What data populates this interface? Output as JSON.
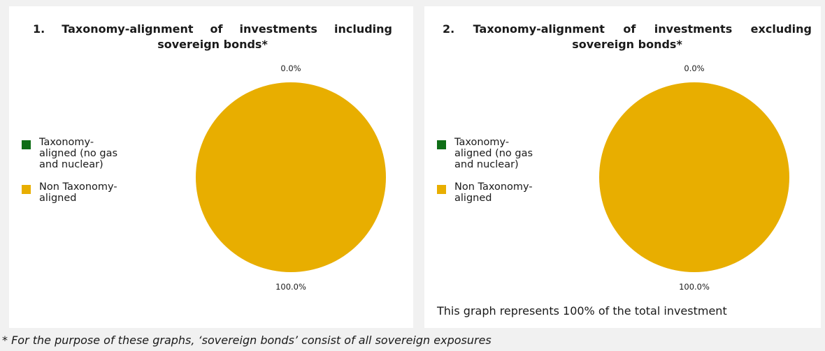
{
  "chart_data": [
    {
      "type": "pie",
      "title": "1. Taxonomy-alignment of investments including sovereign bonds*",
      "categories": [
        "Taxonomy-aligned (no gas and nuclear)",
        "Non Taxonomy-aligned"
      ],
      "values": [
        0.0,
        100.0
      ],
      "data_labels": [
        "0.0%",
        "100.0%"
      ],
      "colors": [
        "#0f6e16",
        "#e8ae00"
      ],
      "legend_position": "left"
    },
    {
      "type": "pie",
      "title": "2. Taxonomy-alignment of investments excluding sovereign bonds*",
      "categories": [
        "Taxonomy-aligned (no gas and nuclear)",
        "Non Taxonomy-aligned"
      ],
      "values": [
        0.0,
        100.0
      ],
      "data_labels": [
        "0.0%",
        "100.0%"
      ],
      "colors": [
        "#0f6e16",
        "#e8ae00"
      ],
      "legend_position": "left"
    }
  ],
  "panel2_note": "This graph represents 100% of the total investment",
  "footnote": "* For the purpose of these graphs, ‘sovereign bonds’ consist of all sovereign exposures"
}
